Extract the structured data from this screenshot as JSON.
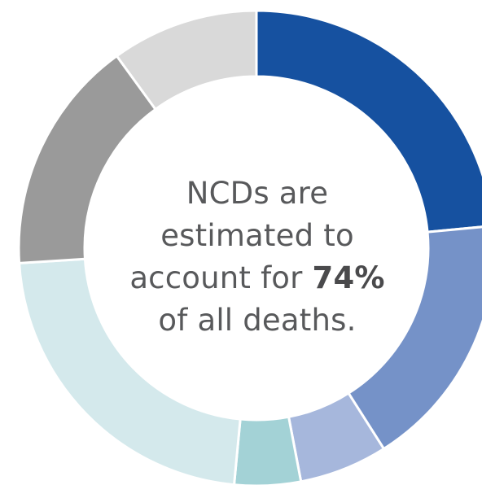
{
  "chart_data": {
    "type": "pie",
    "variant": "donut",
    "segments": [
      {
        "value": 23.5,
        "color": "#1651a0"
      },
      {
        "value": 17.5,
        "color": "#7592c8"
      },
      {
        "value": 6.0,
        "color": "#a6b7dc"
      },
      {
        "value": 4.5,
        "color": "#a3d2d6"
      },
      {
        "value": 22.5,
        "color": "#d4e9ec"
      },
      {
        "value": 16.0,
        "color": "#9a9a9a"
      },
      {
        "value": 10.0,
        "color": "#d9d9d9"
      }
    ],
    "center_text": {
      "line1": "NCDs are",
      "line2": "estimated to",
      "line3_prefix": "account for ",
      "line3_emphasis": "74%",
      "line4": "of all deaths."
    }
  }
}
